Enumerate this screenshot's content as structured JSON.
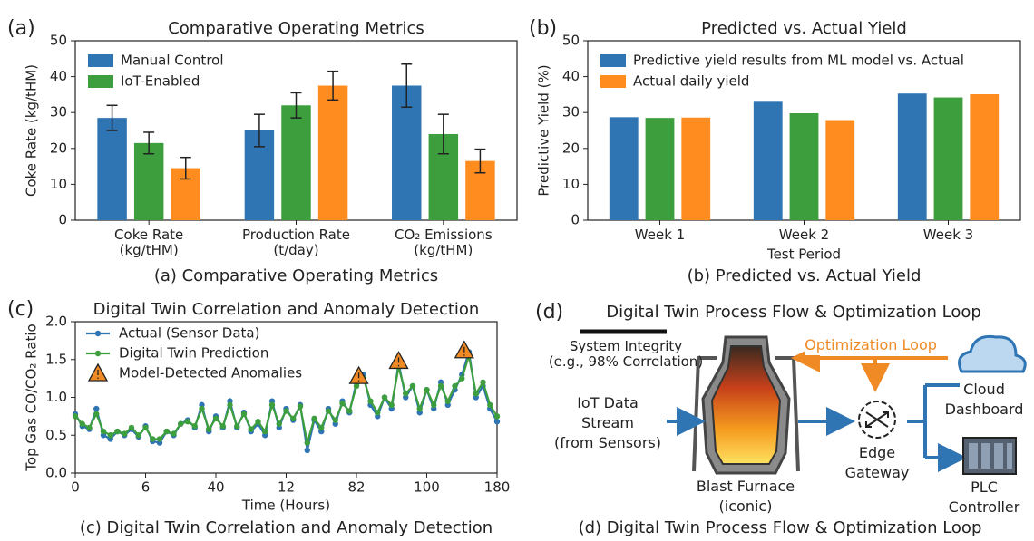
{
  "chart_data": [
    {
      "type": "bar",
      "panel_label": "(a)",
      "title": "Comparative Operating Metrics",
      "caption": "(a) Comparative Operating Metrics",
      "ylabel": "Coke Rate (kg/tHM)",
      "categories": [
        "Coke Rate\n(kg/tHM)",
        "Production Rate\n(t/day)",
        "CO₂ Emissions\n(kg/tHM)"
      ],
      "series": [
        {
          "name": "Manual Control",
          "color": "#2f74b3",
          "values": [
            28.5,
            25,
            37.5
          ],
          "errors": [
            3.5,
            4.5,
            6
          ]
        },
        {
          "name": "IoT-Enabled",
          "color": "#3c9e3c",
          "values": [
            21.5,
            32,
            24
          ],
          "errors": [
            3,
            3.5,
            5.5
          ]
        },
        {
          "color": "#ff8c1f",
          "values": [
            14.5,
            37.5,
            16.5
          ],
          "errors": [
            3,
            4,
            3.3
          ]
        }
      ],
      "ylim": [
        0,
        50
      ],
      "yticks": [
        0,
        10,
        20,
        30,
        40,
        50
      ],
      "legend": "upper left",
      "grid": false
    },
    {
      "type": "bar",
      "panel_label": "(b)",
      "title": "Predicted vs. Actual Yield",
      "caption": "(b) Predicted vs. Actual Yield",
      "ylabel": "Predictive Yield (%)",
      "xlabel": "Test Period",
      "categories": [
        "Week 1",
        "Week 2",
        "Week 3"
      ],
      "series": [
        {
          "name": "Predictive yield results from ML model vs. Actual",
          "color": "#2f74b3",
          "values": [
            28.7,
            33,
            35.3
          ]
        },
        {
          "color": "#3c9e3c",
          "values": [
            28.5,
            29.8,
            34.2
          ]
        },
        {
          "name": "Actual daily yield",
          "color": "#ff8c1f",
          "values": [
            28.6,
            27.9,
            35.1
          ]
        }
      ],
      "ylim": [
        0,
        50
      ],
      "yticks": [
        0,
        10,
        20,
        30,
        40,
        50
      ],
      "legend": "upper left",
      "grid": false
    },
    {
      "type": "line",
      "panel_label": "(c)",
      "title": "Digital Twin Correlation and Anomaly Detection",
      "caption": "(c) Digital Twin Correlation and Anomaly Detection",
      "ylabel": "Top Gas CO/CO₂ Ratio",
      "xlabel": "Time (Hours)",
      "x": [
        0,
        3,
        6,
        9,
        12,
        15,
        18,
        21,
        24,
        27,
        30,
        33,
        36,
        39,
        42,
        45,
        48,
        51,
        54,
        57,
        60,
        63,
        66,
        69,
        72,
        75,
        78,
        81,
        84,
        87,
        90,
        93,
        96,
        99,
        102,
        105,
        108,
        111,
        114,
        117,
        120,
        123,
        126,
        129,
        132,
        135,
        138,
        141,
        144,
        147,
        150,
        153,
        156,
        159,
        162,
        165,
        168,
        171,
        174,
        177,
        180
      ],
      "series": [
        {
          "name": "Actual (Sensor Data)",
          "color": "#2f74b3",
          "values": [
            0.78,
            0.62,
            0.58,
            0.85,
            0.5,
            0.45,
            0.55,
            0.5,
            0.58,
            0.48,
            0.62,
            0.42,
            0.4,
            0.55,
            0.5,
            0.65,
            0.7,
            0.6,
            0.9,
            0.55,
            0.75,
            0.6,
            0.95,
            0.6,
            0.8,
            0.55,
            0.65,
            0.5,
            0.95,
            0.6,
            0.85,
            0.7,
            0.9,
            0.3,
            0.7,
            0.55,
            0.85,
            0.65,
            0.95,
            0.8,
            1.2,
            1.3,
            0.9,
            0.75,
            1.0,
            0.85,
            1.45,
            1.0,
            1.15,
            0.8,
            1.1,
            0.85,
            1.2,
            0.9,
            1.1,
            1.3,
            1.6,
            1.0,
            1.15,
            0.85,
            0.68
          ]
        },
        {
          "name": "Digital Twin Prediction",
          "color": "#3c9e3c",
          "values": [
            0.75,
            0.65,
            0.6,
            0.78,
            0.55,
            0.5,
            0.55,
            0.52,
            0.6,
            0.5,
            0.6,
            0.45,
            0.45,
            0.55,
            0.52,
            0.65,
            0.68,
            0.62,
            0.85,
            0.58,
            0.72,
            0.62,
            0.9,
            0.62,
            0.78,
            0.58,
            0.68,
            0.55,
            0.9,
            0.65,
            0.82,
            0.72,
            0.88,
            0.4,
            0.72,
            0.6,
            0.82,
            0.7,
            0.92,
            0.82,
            1.15,
            1.25,
            0.95,
            0.8,
            1.0,
            0.9,
            1.4,
            1.05,
            1.15,
            0.85,
            1.1,
            0.9,
            1.15,
            0.95,
            1.15,
            1.25,
            1.55,
            1.05,
            1.2,
            0.9,
            0.75
          ]
        },
        {
          "name": "Model-Detected Anomalies",
          "color": "#f08a24",
          "marker": "triangle",
          "x": [
            121,
            138,
            166
          ],
          "values": [
            1.28,
            1.48,
            1.62
          ]
        }
      ],
      "xlim": [
        0,
        180
      ],
      "xticks": [
        0,
        {
          "value": 30,
          "label": "6"
        },
        {
          "value": 60,
          "label": "40"
        },
        {
          "value": 90,
          "label": "12"
        },
        {
          "value": 120,
          "label": "82"
        },
        {
          "value": 150,
          "label": "100"
        },
        180
      ],
      "ylim": [
        0,
        2
      ],
      "yticks": [
        {
          "value": 0,
          "label": "0.0"
        },
        {
          "value": 0.5,
          "label": "0.5"
        },
        {
          "value": 1,
          "label": "1.0"
        },
        {
          "value": 1.5,
          "label": "1.5"
        },
        {
          "value": 2,
          "label": "2.0"
        }
      ],
      "legend": "upper left",
      "grid": false
    }
  ],
  "diagram": {
    "panel_label": "(d)",
    "title": "Digital Twin Process Flow & Optimization Loop",
    "caption": "(d) Digital Twin Process Flow & Optimization Loop",
    "system_integrity": "System Integrity\n(e.g., 98% Correlation)",
    "optimization_loop": "Optimization Loop",
    "iot_stream": "IoT Data\nStream\n(from Sensors)",
    "blast_furnace": "Blast Furnace\n(iconic)",
    "edge_gateway": "Edge\nGateway",
    "cloud": "Cloud\nDashboard",
    "plc": "PLC\nController"
  }
}
